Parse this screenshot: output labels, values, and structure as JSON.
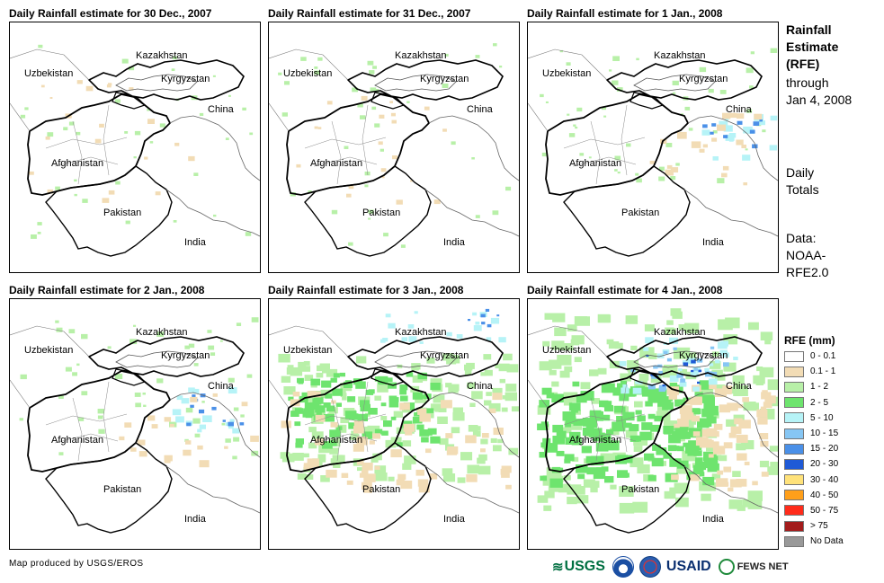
{
  "panels": [
    {
      "title": "Daily Rainfall estimate for 30 Dec., 2007",
      "rain_level": 0
    },
    {
      "title": "Daily Rainfall estimate for 31 Dec., 2007",
      "rain_level": 0
    },
    {
      "title": "Daily Rainfall estimate for 1 Jan., 2008",
      "rain_level": 1
    },
    {
      "title": "Daily Rainfall estimate for 2 Jan., 2008",
      "rain_level": 1
    },
    {
      "title": "Daily Rainfall estimate for 3 Jan., 2008",
      "rain_level": 2
    },
    {
      "title": "Daily Rainfall estimate for 4 Jan., 2008",
      "rain_level": 3
    }
  ],
  "map_labels": {
    "kazakhstan": "Kazakhstan",
    "uzbekistan": "Uzbekistan",
    "kyrgyzstan": "Kyrgyzstan",
    "china": "China",
    "afghanistan": "Afghanistan",
    "pakistan": "Pakistan",
    "india": "India"
  },
  "sidebar": {
    "title_lines": [
      "Rainfall",
      "Estimate",
      "(RFE)"
    ],
    "through_lines": [
      "through",
      "Jan 4, 2008"
    ],
    "daily_lines": [
      "Daily",
      "Totals"
    ],
    "data_lines": [
      "Data:",
      "NOAA-",
      "RFE2.0"
    ]
  },
  "legend": {
    "title": "RFE (mm)",
    "items": [
      {
        "label": "0 - 0.1",
        "color": "#ffffff"
      },
      {
        "label": "0.1 - 1",
        "color": "#f2dcb5"
      },
      {
        "label": "1 - 2",
        "color": "#b8f0a8"
      },
      {
        "label": "2 - 5",
        "color": "#6ee46e"
      },
      {
        "label": "5 - 10",
        "color": "#b6f3f7"
      },
      {
        "label": "10 - 15",
        "color": "#86c6f4"
      },
      {
        "label": "15 - 20",
        "color": "#4a90e8"
      },
      {
        "label": "20 - 30",
        "color": "#1f5ad6"
      },
      {
        "label": "30 - 40",
        "color": "#ffe27a"
      },
      {
        "label": "40 - 50",
        "color": "#ff9f1a"
      },
      {
        "label": "50 - 75",
        "color": "#ff2b1a"
      },
      {
        "label": "> 75",
        "color": "#a31c1c"
      },
      {
        "label": "No Data",
        "color": "#999999"
      }
    ]
  },
  "footer": {
    "credit": "Map produced by USGS/EROS",
    "logo_usgs": "USGS",
    "logo_usaid": "USAID",
    "logo_fews": "FEWS NET"
  }
}
